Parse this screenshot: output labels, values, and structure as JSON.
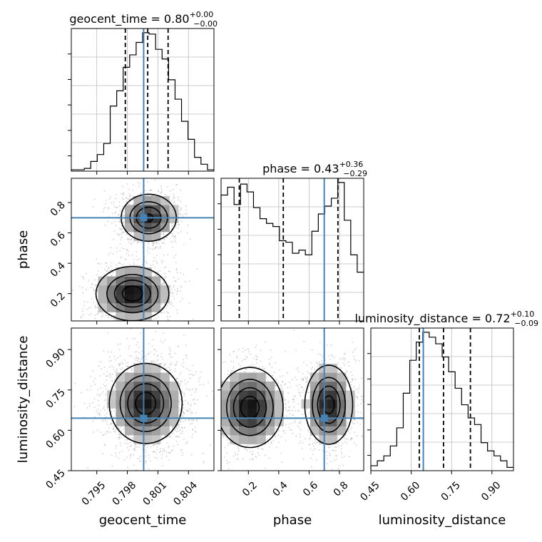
{
  "chart_data": {
    "type": "corner",
    "params": [
      "geocent_time",
      "phase",
      "luminosity_distance"
    ],
    "labels": {
      "geocent_time": "geocent_time",
      "phase": "phase",
      "luminosity_distance": "luminosity_distance"
    },
    "truths": {
      "geocent_time": 0.7996,
      "phase": 0.7,
      "luminosity_distance": 0.645
    },
    "ranges": {
      "geocent_time": [
        0.7925,
        0.8065
      ],
      "phase": [
        0.02,
        0.96
      ],
      "luminosity_distance": [
        0.45,
        0.98
      ]
    },
    "ticks": {
      "geocent_time": {
        "values": [
          0.795,
          0.798,
          0.801,
          0.804
        ],
        "labels": [
          "0.795",
          "0.798",
          "0.801",
          "0.804"
        ]
      },
      "phase": {
        "values": [
          0.2,
          0.4,
          0.6,
          0.8
        ],
        "labels": [
          "0.2",
          "0.4",
          "0.6",
          "0.8"
        ]
      },
      "luminosity_distance": {
        "values": [
          0.45,
          0.6,
          0.75,
          0.9
        ],
        "labels": [
          "0.45",
          "0.60",
          "0.75",
          "0.90"
        ]
      }
    },
    "titles": {
      "geocent_time": {
        "prefix": "geocent_time = 0.80",
        "plus": "+0.00",
        "minus": "−0.00"
      },
      "phase": {
        "prefix": "phase = 0.43",
        "plus": "+0.36",
        "minus": "−0.29"
      },
      "luminosity_distance": {
        "prefix": "luminosity_distance = 0.72",
        "plus": "+0.10",
        "minus": "−0.09"
      }
    },
    "quantiles": {
      "geocent_time": [
        0.7978,
        0.8,
        0.802
      ],
      "phase": [
        0.14,
        0.43,
        0.79
      ],
      "luminosity_distance": [
        0.63,
        0.72,
        0.82
      ]
    },
    "histograms": {
      "geocent_time": {
        "edges_from": 0.7925,
        "edges_to": 0.8065,
        "counts": [
          1,
          1,
          2,
          7,
          12,
          20,
          47,
          58,
          75,
          84,
          93,
          100,
          99,
          88,
          81,
          66,
          52,
          36,
          23,
          10,
          5,
          1
        ]
      },
      "phase": {
        "edges_from": 0.02,
        "edges_to": 0.96,
        "counts": [
          80,
          85,
          74,
          87,
          82,
          72,
          65,
          62,
          60,
          51,
          50,
          43,
          45,
          42,
          57,
          68,
          73,
          78,
          88,
          64,
          42,
          31
        ]
      },
      "luminosity_distance": {
        "edges_from": 0.45,
        "edges_to": 0.98,
        "counts": [
          3,
          6,
          9,
          15,
          26,
          47,
          67,
          78,
          84,
          81,
          77,
          69,
          60,
          50,
          40,
          32,
          28,
          17,
          12,
          9,
          6,
          2
        ]
      }
    },
    "pairs": [
      {
        "x": "geocent_time",
        "y": "phase",
        "modes": [
          {
            "cx": 0.8001,
            "cy": 0.7,
            "sx": 0.0014,
            "sy": 0.08,
            "w": 0.9
          },
          {
            "cx": 0.7985,
            "cy": 0.2,
            "sx": 0.0018,
            "sy": 0.09,
            "w": 1.0
          }
        ]
      },
      {
        "x": "phase",
        "y": "luminosity_distance",
        "modes": [
          {
            "cx": 0.21,
            "cy": 0.685,
            "sx": 0.11,
            "sy": 0.075,
            "w": 1.0
          },
          {
            "cx": 0.73,
            "cy": 0.695,
            "sx": 0.08,
            "sy": 0.075,
            "w": 0.95
          }
        ]
      },
      {
        "x": "geocent_time",
        "y": "luminosity_distance",
        "modes": [
          {
            "cx": 0.7998,
            "cy": 0.7,
            "sx": 0.0018,
            "sy": 0.075,
            "w": 1.0
          }
        ]
      }
    ],
    "colors": {
      "truth": "#4682b4",
      "line": "#000000",
      "frame": "#000000",
      "grid": "#bbbbbb"
    }
  }
}
